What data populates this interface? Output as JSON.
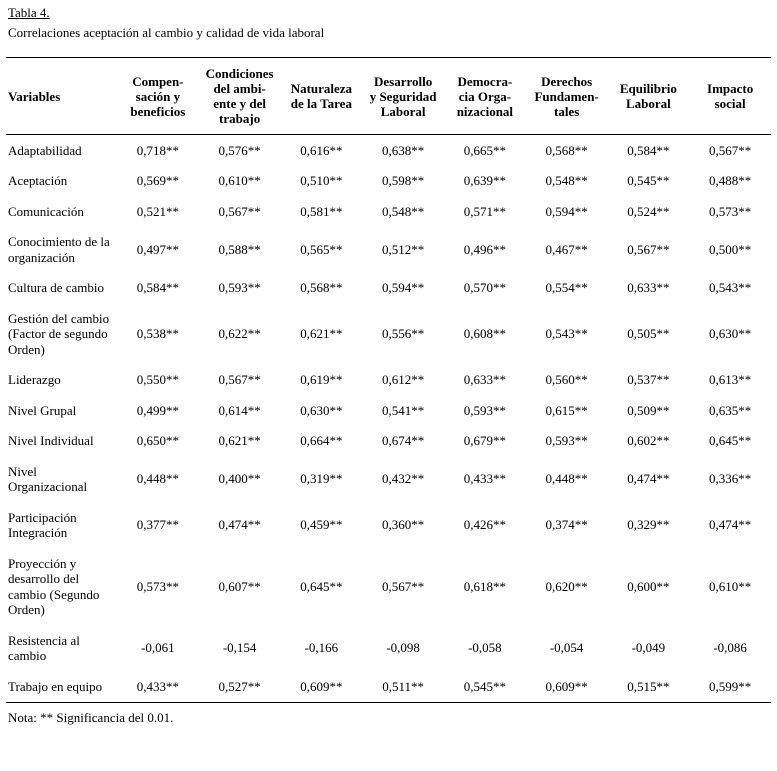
{
  "title": "Tabla 4.",
  "subtitle": "Correlaciones aceptación al cambio y calidad de vida laboral",
  "note": "Nota: ** Significancia del 0.01.",
  "chart_data": {
    "type": "table",
    "columns": [
      "Variables",
      "Compen-\nsación y\nbeneficios",
      "Condiciones\ndel ambi-\nente y del\ntrabajo",
      "Naturaleza\nde la Tarea",
      "Desarrollo\ny Seguridad\nLaboral",
      "Democra-\ncia Orga-\nnizacional",
      "Derechos\nFundamen-\ntales",
      "Equilibrio\nLaboral",
      "Impacto\nsocial"
    ],
    "rows": [
      {
        "variable": "Adaptabilidad",
        "values": [
          "0,718**",
          "0,576**",
          "0,616**",
          "0,638**",
          "0,665**",
          "0,568**",
          "0,584**",
          "0,567**"
        ]
      },
      {
        "variable": "Aceptación",
        "values": [
          "0,569**",
          "0,610**",
          "0,510**",
          "0,598**",
          "0,639**",
          "0,548**",
          "0,545**",
          "0,488**"
        ]
      },
      {
        "variable": "Comunicación",
        "values": [
          "0,521**",
          "0,567**",
          "0,581**",
          "0,548**",
          "0,571**",
          "0,594**",
          "0,524**",
          "0,573**"
        ]
      },
      {
        "variable": "Conocimiento de la organización",
        "values": [
          "0,497**",
          "0,588**",
          "0,565**",
          "0,512**",
          "0,496**",
          "0,467**",
          "0,567**",
          "0,500**"
        ]
      },
      {
        "variable": "Cultura de cambio",
        "values": [
          "0,584**",
          "0,593**",
          "0,568**",
          "0,594**",
          "0,570**",
          "0,554**",
          "0,633**",
          "0,543**"
        ]
      },
      {
        "variable": "Gestión del cambio (Factor de segundo Orden)",
        "values": [
          "0,538**",
          "0,622**",
          "0,621**",
          "0,556**",
          "0,608**",
          "0,543**",
          "0,505**",
          "0,630**"
        ]
      },
      {
        "variable": "Liderazgo",
        "values": [
          "0,550**",
          "0,567**",
          "0,619**",
          "0,612**",
          "0,633**",
          "0,560**",
          "0,537**",
          "0,613**"
        ]
      },
      {
        "variable": "Nivel Grupal",
        "values": [
          "0,499**",
          "0,614**",
          "0,630**",
          "0,541**",
          "0,593**",
          "0,615**",
          "0,509**",
          "0,635**"
        ]
      },
      {
        "variable": "Nivel Individual",
        "values": [
          "0,650**",
          "0,621**",
          "0,664**",
          "0,674**",
          "0,679**",
          "0,593**",
          "0,602**",
          "0,645**"
        ]
      },
      {
        "variable": "Nivel Organizacional",
        "values": [
          "0,448**",
          "0,400**",
          "0,319**",
          "0,432**",
          "0,433**",
          "0,448**",
          "0,474**",
          "0,336**"
        ]
      },
      {
        "variable": "Participación Integración",
        "values": [
          "0,377**",
          "0,474**",
          "0,459**",
          "0,360**",
          "0,426**",
          "0,374**",
          "0,329**",
          "0,474**"
        ]
      },
      {
        "variable": "Proyección y desarrollo del cambio (Segundo Orden)",
        "values": [
          "0,573**",
          "0,607**",
          "0,645**",
          "0,567**",
          "0,618**",
          "0,620**",
          "0,600**",
          "0,610**"
        ]
      },
      {
        "variable": "Resistencia al cambio",
        "values": [
          "-0,061",
          "-0,154",
          "-0,166",
          "-0,098",
          "-0,058",
          "-0,054",
          "-0,049",
          "-0,086"
        ]
      },
      {
        "variable": "Trabajo en equipo",
        "values": [
          "0,433**",
          "0,527**",
          "0,609**",
          "0,511**",
          "0,545**",
          "0,609**",
          "0,515**",
          "0,599**"
        ]
      }
    ]
  }
}
